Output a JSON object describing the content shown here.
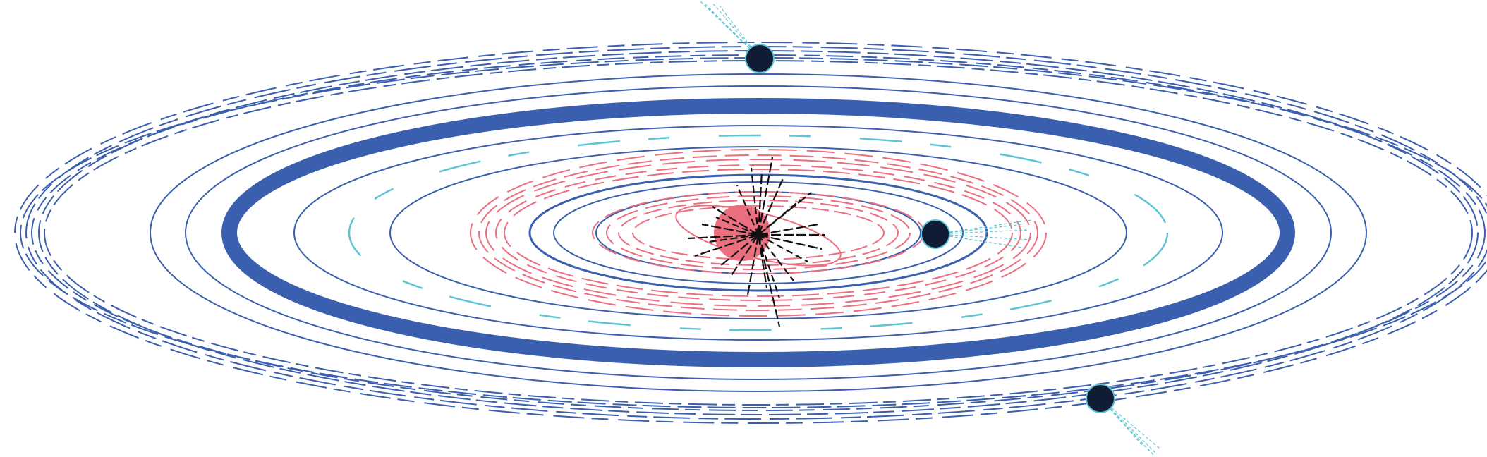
{
  "figure": {
    "kind": "orbital-rings-illustration",
    "colors": {
      "background": "#ffffff",
      "ring_blue": "#3a5fae",
      "ring_cyan": "#5ec4d4",
      "ring_pink": "#ec6f80",
      "star_fill": "#ec6f80",
      "body_fill": "#101c34",
      "body_outline": "#5ec4d4",
      "burst": "#111111"
    },
    "icons": [
      "star-icon",
      "starburst-icon",
      "planet-icon"
    ],
    "bodies": [
      {
        "name": "planet-top",
        "icon": "planet-icon"
      },
      {
        "name": "planet-middle-right",
        "icon": "planet-icon"
      },
      {
        "name": "planet-bottom-right",
        "icon": "planet-icon"
      }
    ]
  }
}
